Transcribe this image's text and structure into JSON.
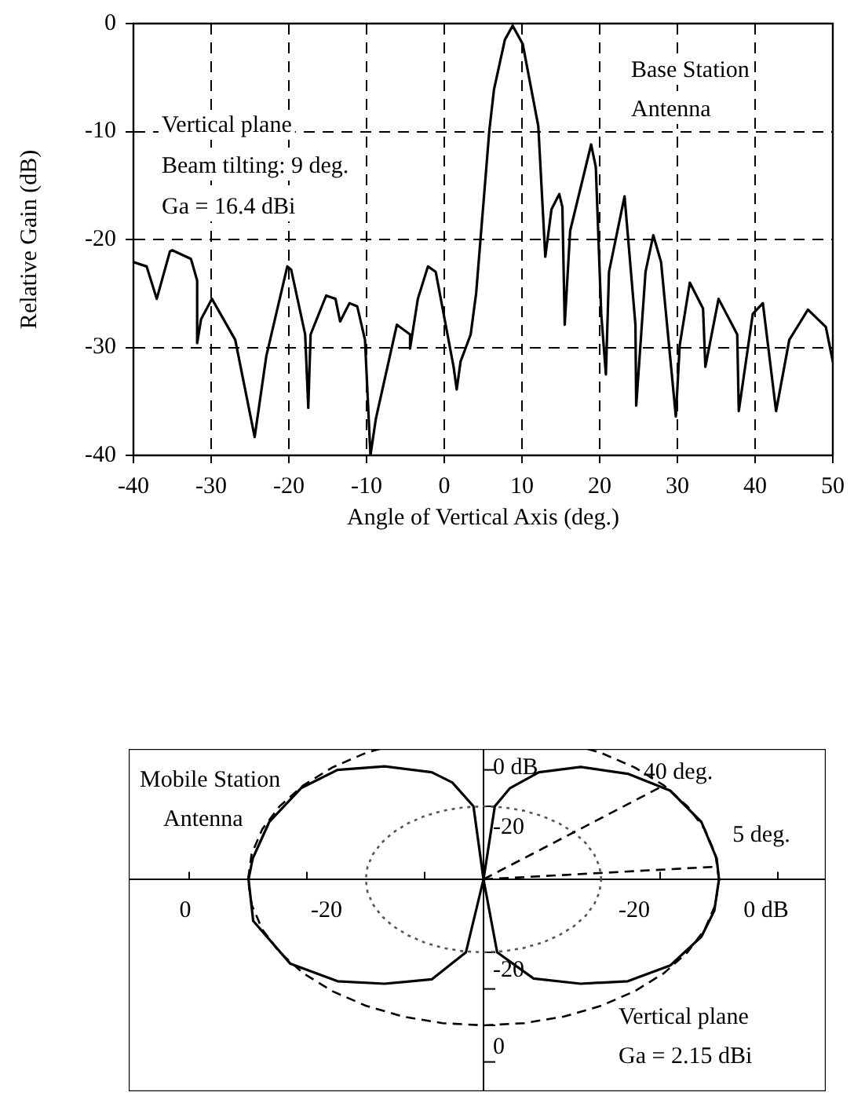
{
  "chart_data": [
    {
      "type": "line",
      "xlabel": "Angle of Vertical Axis (deg.)",
      "ylabel": "Relative Gain (dB)",
      "xlim": [
        -40,
        50
      ],
      "xticks": [
        -40,
        -30,
        -20,
        -10,
        0,
        10,
        20,
        30,
        40,
        50
      ],
      "ylim": [
        -40,
        0
      ],
      "yticks": [
        -40,
        -30,
        -20,
        -10,
        0
      ],
      "grid": true,
      "line_style": "solid",
      "annotations": [
        "Vertical plane",
        "Beam tilting: 9 deg.",
        "Ga = 16.4 dBi",
        "Base Station",
        "Antenna"
      ],
      "series": [
        {
          "color": "#000000",
          "x": [
            -40,
            -38.3,
            -37,
            -35.3,
            -35,
            -32.6,
            -31.8,
            -31.8,
            -31.3,
            -29.9,
            -26.9,
            -24.4,
            -22.9,
            -20.2,
            -19.7,
            -17.9,
            -17.5,
            -17.2,
            -15.2,
            -14,
            -13.4,
            -12.2,
            -11.2,
            -10.2,
            -9.5,
            -8.8,
            -6.1,
            -4.4,
            -4.4,
            -3.4,
            -2.1,
            -1.1,
            1.2,
            1.6,
            2.1,
            3.4,
            4.1,
            5.8,
            6.4,
            7.8,
            8.8,
            10.1,
            12.1,
            13,
            13.8,
            14.8,
            15.2,
            15.5,
            16.2,
            18.9,
            19.5,
            20.2,
            20.8,
            21.2,
            23.2,
            24.6,
            24.7,
            25.9,
            26.9,
            27.9,
            29.8,
            30.3,
            31.6,
            33.3,
            33.6,
            35.3,
            37.7,
            37.9,
            39.7,
            41,
            42.7,
            44.4,
            46.8,
            49.1,
            50
          ],
          "values": [
            -22.1,
            -22.5,
            -25.5,
            -21.1,
            -21,
            -21.8,
            -23.8,
            -29.6,
            -27.4,
            -25.5,
            -29.3,
            -38.3,
            -30.8,
            -22.5,
            -22.8,
            -28.8,
            -35.6,
            -28.8,
            -25.2,
            -25.5,
            -27.6,
            -25.9,
            -26.2,
            -29.3,
            -40,
            -36.6,
            -27.9,
            -28.8,
            -30.1,
            -25.5,
            -22.5,
            -23,
            -31.8,
            -33.9,
            -31.3,
            -28.8,
            -25,
            -9.9,
            -6.1,
            -1.5,
            -0.2,
            -1.9,
            -9.5,
            -21.6,
            -17.2,
            -15.8,
            -17,
            -27.9,
            -19.2,
            -11.2,
            -13.3,
            -26.9,
            -32.5,
            -23,
            -16,
            -27.9,
            -35.4,
            -23,
            -19.6,
            -22.1,
            -36.4,
            -29.8,
            -24,
            -26.4,
            -31.8,
            -25.5,
            -28.8,
            -35.9,
            -26.9,
            -25.9,
            -35.9,
            -29.3,
            -26.5,
            -28.1,
            -31.3
          ]
        }
      ]
    },
    {
      "type": "other",
      "annotations": [
        "Mobile Station",
        "Antenna",
        "40 deg.",
        "5 deg.",
        "Vertical plane",
        "Ga = 2.15 dBi",
        "0",
        "-20",
        "-20",
        "0 dB",
        "0 dB",
        "-20",
        "-20",
        "0"
      ]
    }
  ]
}
